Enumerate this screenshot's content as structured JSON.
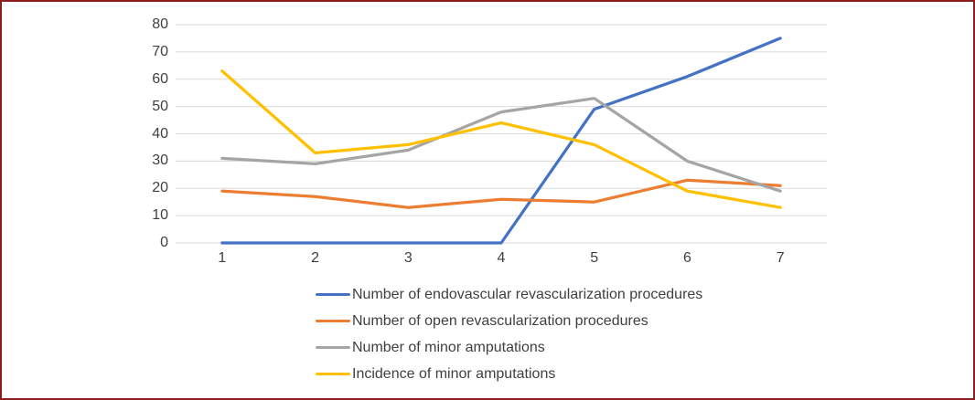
{
  "frame": {
    "border_color": "#8e1d1d",
    "background_color": "#ffffff"
  },
  "chart_data": {
    "type": "line",
    "title": "",
    "xlabel": "",
    "ylabel": "",
    "categories": [
      "1",
      "2",
      "3",
      "4",
      "5",
      "6",
      "7"
    ],
    "series": [
      {
        "name": "Number of endovascular revascularization procedures",
        "color": "#4472C4",
        "values": [
          0,
          0,
          0,
          0,
          49,
          61,
          75
        ]
      },
      {
        "name": "Number of open revascularization procedures",
        "color": "#ED7D31",
        "values": [
          19,
          17,
          13,
          16,
          15,
          23,
          21
        ]
      },
      {
        "name": "Number of minor amputations",
        "color": "#A5A5A5",
        "values": [
          31,
          29,
          34,
          48,
          53,
          30,
          19
        ]
      },
      {
        "name": "Incidence of minor amputations",
        "color": "#FFC000",
        "values": [
          63,
          33,
          36,
          44,
          36,
          19,
          13
        ]
      }
    ],
    "ylim": [
      0,
      80
    ],
    "ytick_step": 10,
    "yticks": [
      "0",
      "10",
      "20",
      "30",
      "40",
      "50",
      "60",
      "70",
      "80"
    ],
    "grid": true,
    "gridline_color": "#D9D9D9",
    "axis_text_color": "#404040",
    "legend_position": "bottom-left"
  }
}
